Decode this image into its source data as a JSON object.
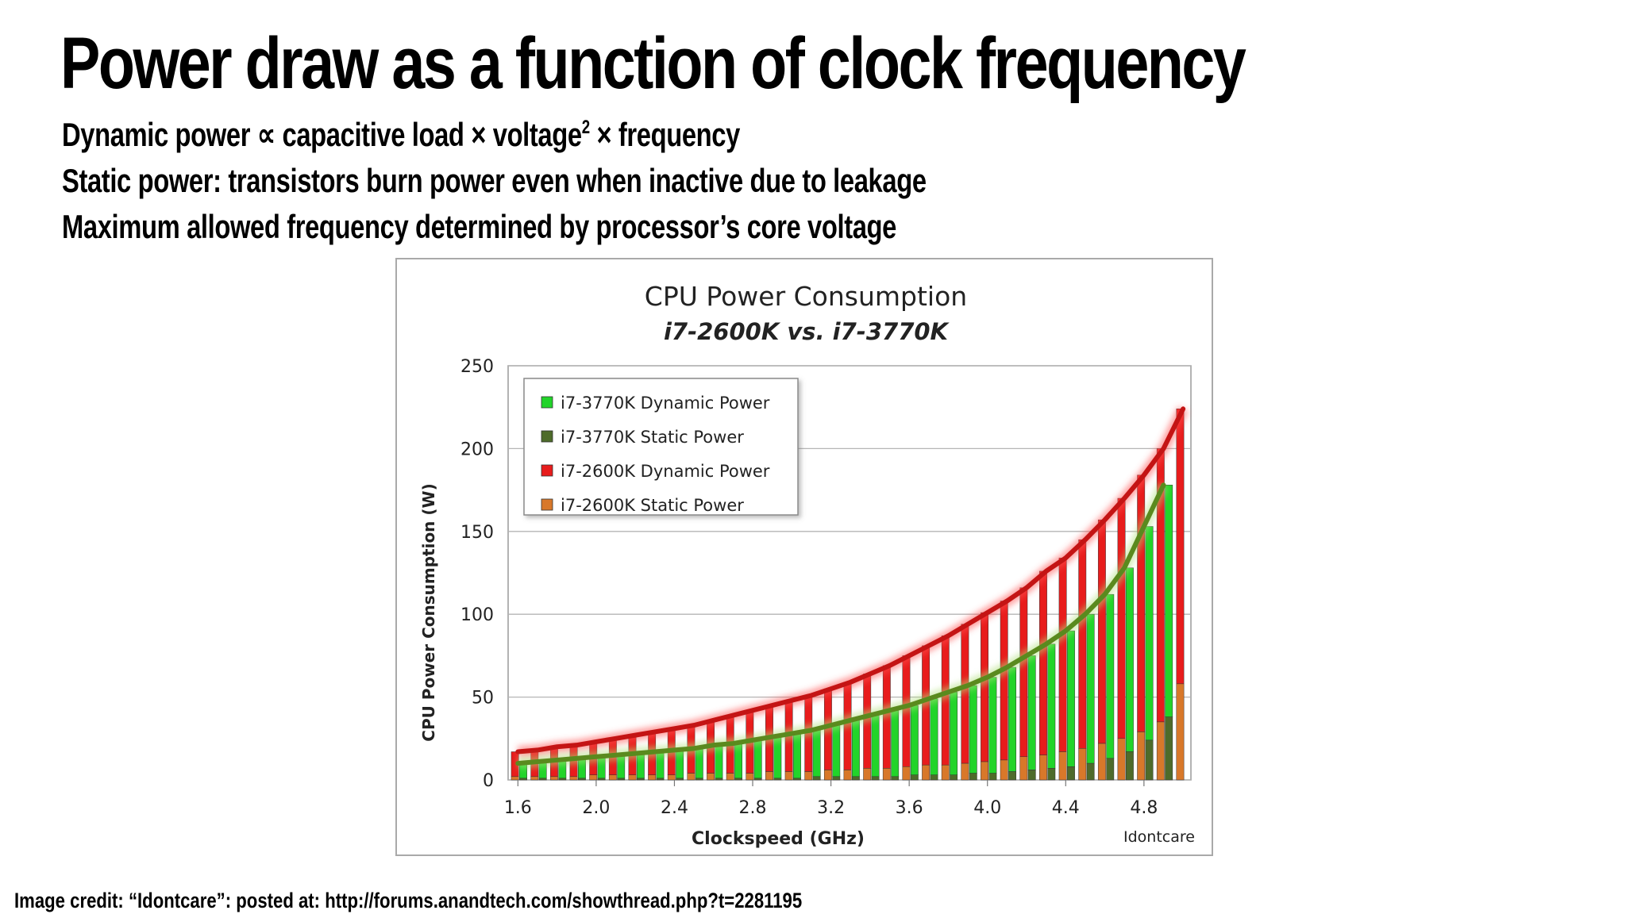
{
  "slide": {
    "title": "Power draw as a function of clock frequency",
    "bullets": {
      "dynamic": {
        "prefix": "Dynamic power",
        "proportional": "∝",
        "load": "capacitive load",
        "times1": "×",
        "voltage": "voltage",
        "exp": "2",
        "times2": "×",
        "frequency": "frequency"
      },
      "static": "Static power: transistors burn power even when inactive due to leakage",
      "max_freq": "Maximum allowed frequency determined by processor’s core voltage"
    },
    "credit": "Image credit: “Idontcare”:  posted at: http://forums.anandtech.com/showthread.php?t=2281195"
  },
  "chart_data": {
    "type": "bar",
    "title": "CPU Power Consumption",
    "subtitle": "i7-2600K vs. i7-3770K",
    "xlabel": "Clockspeed (GHz)",
    "ylabel": "CPU Power Consumption (W)",
    "watermark": "Idontcare",
    "ylim": [
      0,
      250
    ],
    "yticks": [
      0,
      50,
      100,
      150,
      200,
      250
    ],
    "xticks": [
      "1.6",
      "2.0",
      "2.4",
      "2.8",
      "3.2",
      "3.6",
      "4.0",
      "4.4",
      "4.8"
    ],
    "xlim": [
      1.6,
      5.0
    ],
    "grid": true,
    "legend_position": "top-left",
    "series": [
      {
        "name": "i7-3770K Dynamic Power",
        "color": "#22d42a",
        "x": [
          1.6,
          1.7,
          1.8,
          1.9,
          2.0,
          2.1,
          2.2,
          2.3,
          2.4,
          2.5,
          2.6,
          2.7,
          2.8,
          2.9,
          3.0,
          3.1,
          3.2,
          3.3,
          3.4,
          3.5,
          3.6,
          3.7,
          3.8,
          3.9,
          4.0,
          4.1,
          4.2,
          4.3,
          4.4,
          4.5,
          4.6,
          4.7,
          4.8,
          4.9
        ],
        "values": [
          10,
          11,
          12,
          13,
          14,
          15,
          16,
          17,
          18,
          19,
          21,
          22,
          24,
          26,
          28,
          30,
          33,
          36,
          39,
          42,
          45,
          49,
          53,
          57,
          62,
          68,
          75,
          82,
          90,
          100,
          112,
          128,
          153,
          178
        ]
      },
      {
        "name": "i7-3770K Static Power",
        "color": "#4e6b2a",
        "x": [
          1.6,
          1.7,
          1.8,
          1.9,
          2.0,
          2.1,
          2.2,
          2.3,
          2.4,
          2.5,
          2.6,
          2.7,
          2.8,
          2.9,
          3.0,
          3.1,
          3.2,
          3.3,
          3.4,
          3.5,
          3.6,
          3.7,
          3.8,
          3.9,
          4.0,
          4.1,
          4.2,
          4.3,
          4.4,
          4.5,
          4.6,
          4.7,
          4.8,
          4.9
        ],
        "values": [
          1,
          1,
          1,
          1,
          1,
          1,
          1,
          1,
          1,
          1,
          1,
          1,
          1,
          1,
          1,
          2,
          2,
          2,
          2,
          2,
          3,
          3,
          3,
          4,
          4,
          5,
          6,
          7,
          8,
          10,
          13,
          17,
          24,
          38
        ]
      },
      {
        "name": "i7-2600K Dynamic Power",
        "color": "#e81c1c",
        "x": [
          1.6,
          1.7,
          1.8,
          1.9,
          2.0,
          2.1,
          2.2,
          2.3,
          2.4,
          2.5,
          2.6,
          2.7,
          2.8,
          2.9,
          3.0,
          3.1,
          3.2,
          3.3,
          3.4,
          3.5,
          3.6,
          3.7,
          3.8,
          3.9,
          4.0,
          4.1,
          4.2,
          4.3,
          4.4,
          4.5,
          4.6,
          4.7,
          4.8,
          4.9,
          5.0
        ],
        "values": [
          17,
          18,
          20,
          21,
          23,
          25,
          27,
          29,
          31,
          33,
          36,
          39,
          42,
          45,
          48,
          51,
          55,
          59,
          64,
          69,
          75,
          81,
          87,
          94,
          101,
          108,
          116,
          126,
          134,
          145,
          157,
          170,
          184,
          200,
          224
        ]
      },
      {
        "name": "i7-2600K Static Power",
        "color": "#d8782a",
        "x": [
          1.6,
          1.7,
          1.8,
          1.9,
          2.0,
          2.1,
          2.2,
          2.3,
          2.4,
          2.5,
          2.6,
          2.7,
          2.8,
          2.9,
          3.0,
          3.1,
          3.2,
          3.3,
          3.4,
          3.5,
          3.6,
          3.7,
          3.8,
          3.9,
          4.0,
          4.1,
          4.2,
          4.3,
          4.4,
          4.5,
          4.6,
          4.7,
          4.8,
          4.9,
          5.0
        ],
        "values": [
          2,
          2,
          2,
          2,
          3,
          3,
          3,
          3,
          3,
          4,
          4,
          4,
          4,
          5,
          5,
          5,
          6,
          6,
          7,
          7,
          8,
          9,
          9,
          10,
          11,
          12,
          14,
          15,
          17,
          19,
          22,
          25,
          29,
          35,
          58
        ]
      }
    ]
  }
}
